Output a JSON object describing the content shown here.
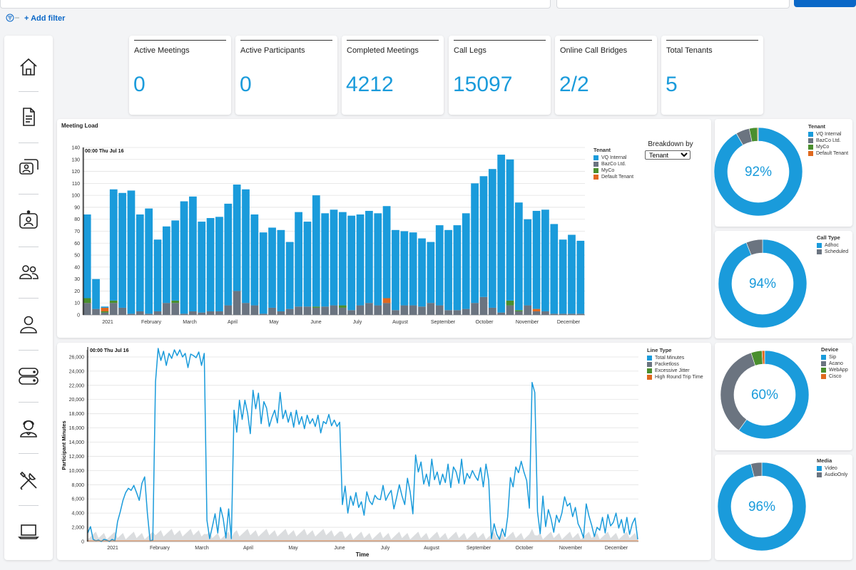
{
  "topbar": {
    "add_filter_label": "+ Add filter"
  },
  "nav": {
    "items": [
      "home-icon",
      "report-icon",
      "meeting-chat-icon",
      "video-device-icon",
      "users-group-icon",
      "user-icon",
      "server-icon",
      "support-agent-icon",
      "tools-icon",
      "laptop-icon"
    ]
  },
  "kpis": [
    {
      "label": "Active Meetings",
      "value": "0"
    },
    {
      "label": "Active Participants",
      "value": "0"
    },
    {
      "label": "Completed Meetings",
      "value": "4212"
    },
    {
      "label": "Call Legs",
      "value": "15097"
    },
    {
      "label": "Online Call Bridges",
      "value": "2/2"
    },
    {
      "label": "Total Tenants",
      "value": "5"
    }
  ],
  "meeting_load": {
    "title": "Meeting Load",
    "cursor_label": "00:00 Thu Jul 16",
    "breakdown_label": "Breakdown by",
    "breakdown_selected": "Tenant",
    "legend_title": "Tenant",
    "legend": [
      {
        "name": "VQ Internal",
        "color": "#1a9bdb"
      },
      {
        "name": "BazCo Ltd.",
        "color": "#6b7480"
      },
      {
        "name": "MyCo",
        "color": "#4a8f2e"
      },
      {
        "name": "Default Tenant",
        "color": "#e0681e"
      }
    ]
  },
  "participant_minutes": {
    "cursor_label": "00:00 Thu Jul 16",
    "ylabel": "Participant Minutes",
    "xlabel": "Time",
    "legend_title": "Line Type",
    "legend": [
      {
        "name": "Total Minutes",
        "color": "#1a9bdb"
      },
      {
        "name": "Packetloss",
        "color": "#6b7480"
      },
      {
        "name": "Excessive Jitter",
        "color": "#4a8f2e"
      },
      {
        "name": "High Round Trip Time",
        "color": "#e0681e"
      }
    ]
  },
  "donuts": [
    {
      "title": "Tenant",
      "pct": "92%",
      "legend": [
        {
          "name": "VQ Internal",
          "color": "#1a9bdb"
        },
        {
          "name": "BazCo Ltd.",
          "color": "#6b7480"
        },
        {
          "name": "MyCo",
          "color": "#4a8f2e"
        },
        {
          "name": "Default Tenant",
          "color": "#e0681e"
        }
      ]
    },
    {
      "title": "Call Type",
      "pct": "94%",
      "legend": [
        {
          "name": "Adhoc",
          "color": "#1a9bdb"
        },
        {
          "name": "Scheduled",
          "color": "#6b7480"
        }
      ]
    },
    {
      "title": "Device",
      "pct": "60%",
      "legend": [
        {
          "name": "Sip",
          "color": "#1a9bdb"
        },
        {
          "name": "Acano",
          "color": "#6b7480"
        },
        {
          "name": "WebApp",
          "color": "#4a8f2e"
        },
        {
          "name": "Cisco",
          "color": "#e0681e"
        }
      ]
    },
    {
      "title": "Media",
      "pct": "96%",
      "legend": [
        {
          "name": "Video",
          "color": "#1a9bdb"
        },
        {
          "name": "AudioOnly",
          "color": "#6b7480"
        }
      ]
    }
  ],
  "chart_data": [
    {
      "type": "bar",
      "name": "Meeting Load",
      "stacked": true,
      "ylim": [
        0,
        140
      ],
      "yticks": [
        0,
        10,
        20,
        30,
        40,
        50,
        60,
        70,
        80,
        90,
        100,
        110,
        120,
        130,
        140
      ],
      "x_tick_labels": [
        "2021",
        "February",
        "March",
        "April",
        "May",
        "June",
        "July",
        "August",
        "September",
        "October",
        "November",
        "December"
      ],
      "grid": true,
      "legend_position": "right",
      "series": [
        {
          "name": "VQ Internal",
          "values": [
            70,
            25,
            1,
            93,
            96,
            103,
            81,
            88,
            60,
            64,
            67,
            94,
            96,
            76,
            78,
            79,
            85,
            89,
            95,
            76,
            68,
            67,
            68,
            56,
            79,
            71,
            93,
            78,
            80,
            78,
            79,
            76,
            77,
            77,
            77,
            67,
            62,
            61,
            57,
            51,
            67,
            67,
            71,
            80,
            100,
            101,
            116,
            132,
            118,
            90,
            72,
            82,
            85,
            75,
            62,
            66,
            61
          ]
        },
        {
          "name": "BazCo Ltd.",
          "values": [
            10,
            5,
            2,
            10,
            6,
            1,
            3,
            1,
            3,
            10,
            10,
            1,
            3,
            2,
            3,
            3,
            8,
            20,
            10,
            8,
            1,
            6,
            3,
            5,
            7,
            7,
            6,
            7,
            8,
            6,
            4,
            8,
            10,
            8,
            10,
            4,
            8,
            8,
            7,
            10,
            8,
            4,
            4,
            5,
            10,
            15,
            6,
            2,
            8,
            3,
            8,
            3,
            3,
            1,
            1,
            1,
            1
          ]
        },
        {
          "name": "MyCo",
          "values": [
            4,
            0,
            1,
            2,
            0,
            0,
            0,
            0,
            0,
            0,
            2,
            0,
            0,
            0,
            0,
            0,
            0,
            0,
            0,
            0,
            0,
            0,
            0,
            0,
            0,
            0,
            1,
            0,
            0,
            2,
            0,
            0,
            0,
            0,
            0,
            0,
            0,
            0,
            0,
            0,
            0,
            0,
            0,
            0,
            0,
            0,
            0,
            0,
            4,
            1,
            0,
            0,
            0,
            0,
            0,
            0,
            0
          ]
        },
        {
          "name": "Default Tenant",
          "values": [
            0,
            0,
            3,
            0,
            0,
            0,
            0,
            0,
            0,
            0,
            0,
            0,
            0,
            0,
            0,
            0,
            0,
            0,
            0,
            0,
            0,
            0,
            0,
            0,
            0,
            0,
            0,
            0,
            0,
            0,
            0,
            0,
            0,
            0,
            4,
            0,
            0,
            0,
            0,
            0,
            0,
            0,
            0,
            0,
            0,
            0,
            0,
            0,
            0,
            0,
            0,
            2,
            0,
            0,
            0,
            0,
            0
          ]
        }
      ]
    },
    {
      "type": "line",
      "name": "Participant Minutes",
      "ylim": [
        0,
        27000
      ],
      "yticks": [
        0,
        2000,
        4000,
        6000,
        8000,
        10000,
        12000,
        14000,
        16000,
        18000,
        20000,
        22000,
        24000,
        26000
      ],
      "ytick_labels": [
        "0",
        "2,000",
        "4,000",
        "6,000",
        "8,000",
        "10,000",
        "12,000",
        "14,000",
        "16,000",
        "18,000",
        "20,000",
        "22,000",
        "24,000",
        "26,000"
      ],
      "x_tick_labels": [
        "2021",
        "February",
        "March",
        "April",
        "May",
        "June",
        "July",
        "August",
        "September",
        "October",
        "November",
        "December"
      ],
      "grid": true,
      "legend_position": "right",
      "series": [
        {
          "name": "Total Minutes",
          "values": [
            1200,
            2100,
            300,
            100,
            200,
            0,
            300,
            200,
            0,
            300,
            100,
            2800,
            4200,
            5800,
            6900,
            7500,
            7200,
            7900,
            6900,
            5800,
            8200,
            9100,
            4000,
            100,
            200,
            22500,
            27200,
            25500,
            26800,
            24800,
            26500,
            25800,
            27000,
            26200,
            27000,
            26000,
            26500,
            24500,
            26400,
            26200,
            25900,
            26700,
            24800,
            26500,
            3000,
            400,
            2100,
            3900,
            1200,
            4800,
            3200,
            500,
            4600,
            400,
            18500,
            15400,
            19900,
            17200,
            19900,
            18100,
            15200,
            21300,
            18700,
            20900,
            16600,
            19700,
            18800,
            16200,
            17500,
            18500,
            16700,
            21000,
            17300,
            18500,
            16800,
            18200,
            16100,
            18500,
            16500,
            17600,
            15900,
            17800,
            16600,
            17300,
            16200,
            17800,
            15300,
            16900,
            16600,
            17900,
            16300,
            17100,
            16200,
            16800,
            5200,
            7800,
            4000,
            6400,
            5100,
            6900,
            4800,
            5600,
            3700,
            7000,
            5700,
            5200,
            6500,
            6000,
            5900,
            7900,
            5800,
            6600,
            7200,
            4600,
            6200,
            8000,
            6400,
            5200,
            8900,
            7000,
            3900,
            12200,
            9800,
            11200,
            8100,
            9500,
            7800,
            11600,
            8700,
            9800,
            8000,
            9500,
            8300,
            10900,
            7600,
            10500,
            9800,
            8200,
            11600,
            8100,
            9600,
            8900,
            10000,
            9200,
            8600,
            10400,
            7700,
            10900,
            8600,
            400,
            2500,
            1000,
            300,
            1800,
            700,
            3500,
            9000,
            7700,
            10500,
            9700,
            11300,
            9800,
            8600,
            4700,
            22400,
            21000,
            4200,
            1100,
            6400,
            2100,
            4500,
            3200,
            1300,
            3700,
            2700,
            4000,
            6300,
            5000,
            5400,
            3500,
            4800,
            2500,
            1700,
            500,
            5300,
            3600,
            2300,
            700,
            2000,
            1600,
            3400,
            1200,
            3800,
            2200,
            2700,
            4000,
            1900,
            3100,
            1200,
            3400,
            1000,
            2500,
            3300,
            300
          ]
        },
        {
          "name": "Packetloss",
          "values": [
            0
          ]
        },
        {
          "name": "Excessive Jitter",
          "values": [
            0
          ]
        },
        {
          "name": "High Round Trip Time",
          "values": [
            0
          ]
        }
      ]
    },
    {
      "type": "pie",
      "name": "Tenant",
      "labels": [
        "VQ Internal",
        "BazCo Ltd.",
        "MyCo",
        "Default Tenant"
      ],
      "values": [
        92,
        5,
        3,
        0.3
      ]
    },
    {
      "type": "pie",
      "name": "Call Type",
      "labels": [
        "Adhoc",
        "Scheduled"
      ],
      "values": [
        94,
        6
      ]
    },
    {
      "type": "pie",
      "name": "Device",
      "labels": [
        "Sip",
        "Acano",
        "WebApp",
        "Cisco"
      ],
      "values": [
        60,
        35,
        4,
        1
      ]
    },
    {
      "type": "pie",
      "name": "Media",
      "labels": [
        "Video",
        "AudioOnly"
      ],
      "values": [
        96,
        4
      ]
    }
  ]
}
